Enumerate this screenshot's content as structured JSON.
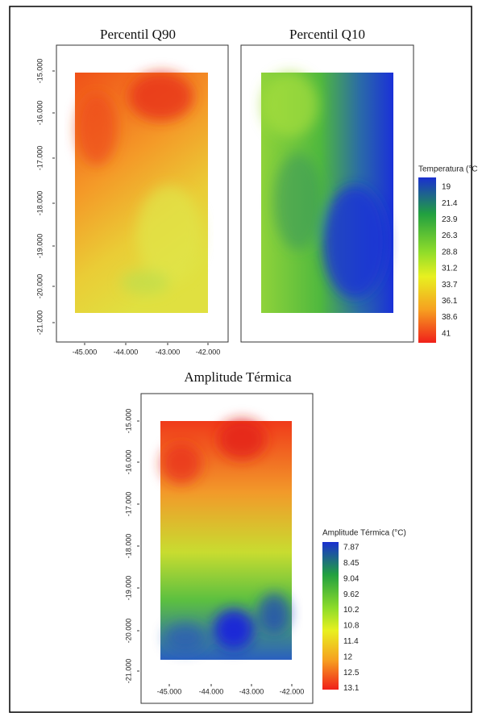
{
  "panels": [
    {
      "title": "Percentil Q90",
      "yticks": [
        "-15.000",
        "-16.000",
        "-17.000",
        "-18.000",
        "-19.000",
        "-20.000",
        "-21.000"
      ],
      "xticks": [
        "-45.000",
        "-44.000",
        "-43.000",
        "-42.000"
      ]
    },
    {
      "title": "Percentil Q10"
    },
    {
      "title": "Amplitude Térmica",
      "yticks": [
        "-15.000",
        "-16.000",
        "-17.000",
        "-18.000",
        "-19.000",
        "-20.000",
        "-21.000"
      ],
      "xticks": [
        "-45.000",
        "-44.000",
        "-43.000",
        "-42.000"
      ]
    }
  ],
  "legends": [
    {
      "title": "Temperatura (°C",
      "labels": [
        "19",
        "21.4",
        "23.9",
        "26.3",
        "28.8",
        "31.2",
        "33.7",
        "36.1",
        "38.6",
        "41"
      ]
    },
    {
      "title": "Amplitude Térmica (°C)",
      "labels": [
        "7.87",
        "8.45",
        "9.04",
        "9.62",
        "10.2",
        "10.8",
        "11.4",
        "12",
        "12.5",
        "13.1"
      ]
    }
  ]
}
